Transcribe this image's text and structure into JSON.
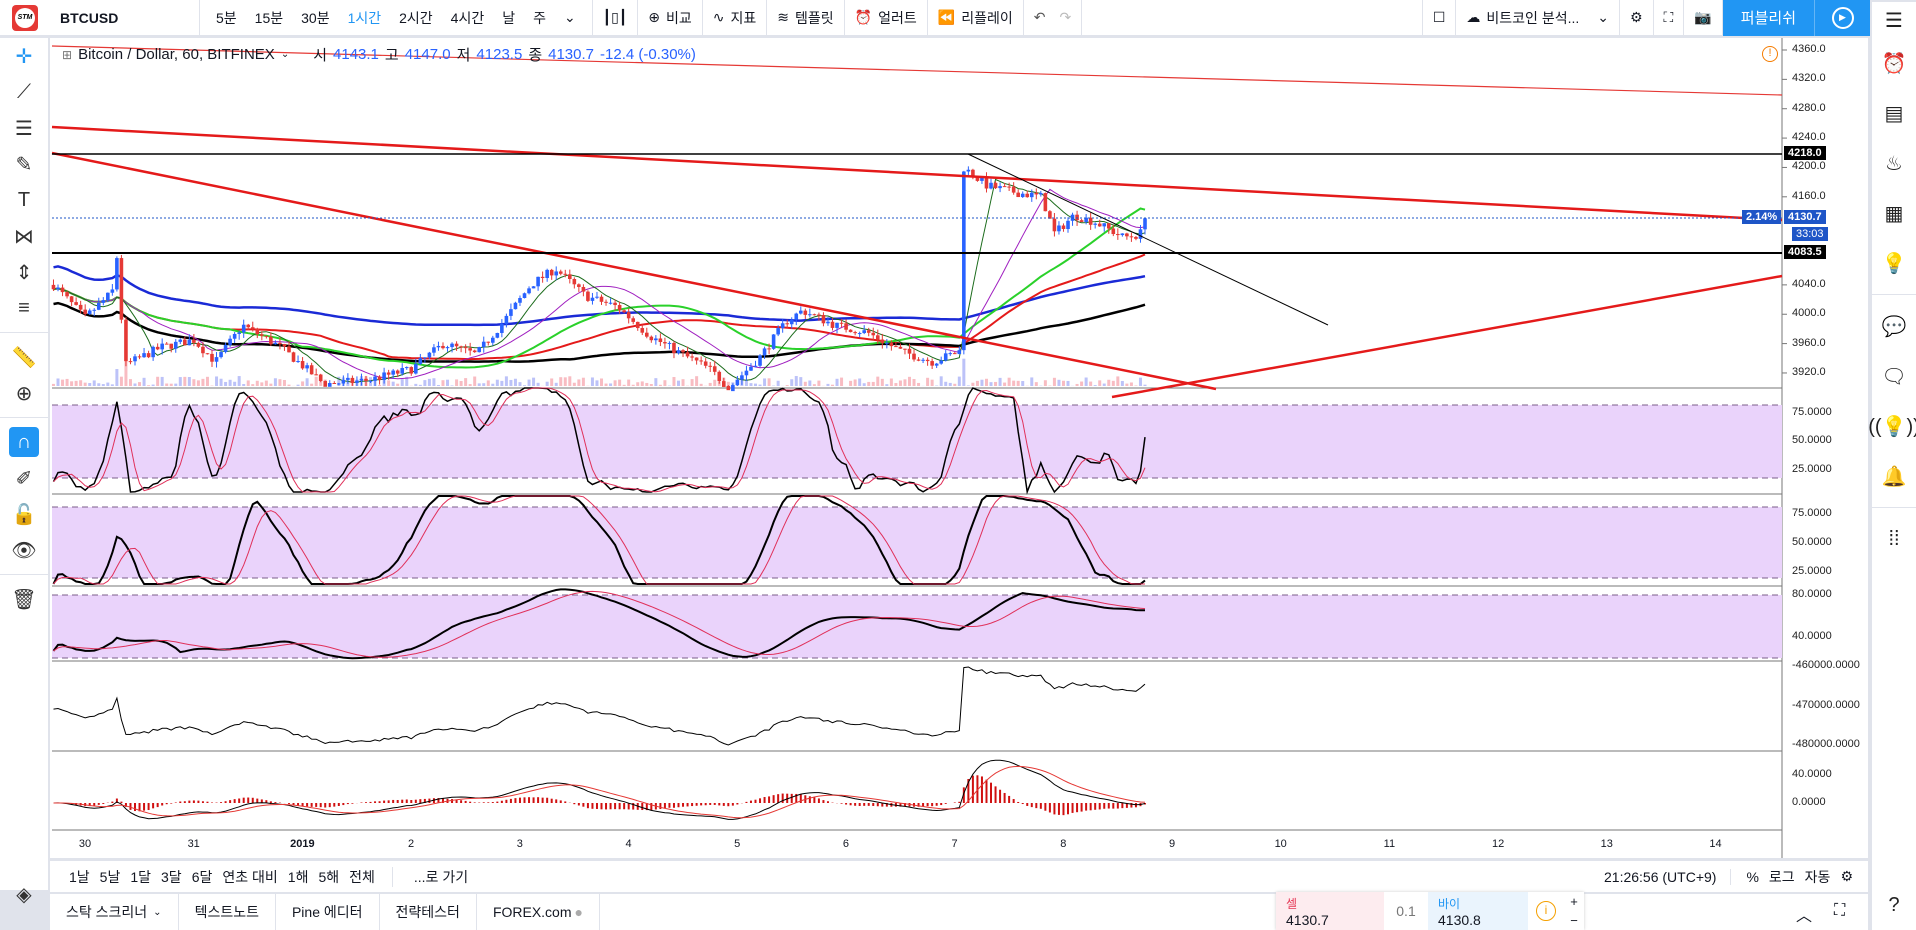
{
  "toolbar": {
    "symbol": "BTCUSD",
    "timeframes": [
      "5분",
      "15분",
      "30분",
      "1시간",
      "2시간",
      "4시간",
      "날",
      "주"
    ],
    "active_timeframe": "1시간",
    "compare": "비교",
    "indicators": "지표",
    "templates": "템플릿",
    "alert": "얼러트",
    "replay": "리플레이",
    "layout_name": "비트코인 분석...",
    "publish": "퍼블리쉬"
  },
  "legend": {
    "title": "Bitcoin / Dollar, 60, BITFINEX",
    "open_label": "시",
    "open": "4143.1",
    "high_label": "고",
    "high": "4147.0",
    "low_label": "저",
    "low": "4123.5",
    "close_label": "종",
    "close": "4130.7",
    "change": "-12.4 (-0.30%)"
  },
  "price_axis": {
    "main": [
      "4360.0",
      "4320.0",
      "4280.0",
      "4240.0",
      "4200.0",
      "4160.0",
      "4040.0",
      "4000.0",
      "3960.0",
      "3920.0"
    ],
    "main_values": [
      4360,
      4320,
      4280,
      4240,
      4200,
      4160,
      4040,
      4000,
      3960,
      3920
    ],
    "tag_upper": "4218.0",
    "tag_lower": "4083.5",
    "last_price": "4130.7",
    "countdown": "33:03",
    "pct": "2.14%",
    "pane2": [
      "75.0000",
      "50.0000",
      "25.0000"
    ],
    "pane3": [
      "75.0000",
      "50.0000",
      "25.0000"
    ],
    "pane4": [
      "80.0000",
      "40.0000"
    ],
    "pane5": [
      "-460000.0000",
      "-470000.0000",
      "-480000.0000"
    ],
    "pane6": [
      "40.0000",
      "0.0000"
    ]
  },
  "time_axis": [
    "30",
    "31",
    "2019",
    "2",
    "3",
    "4",
    "5",
    "6",
    "7",
    "8",
    "9",
    "10",
    "11",
    "12",
    "13",
    "14"
  ],
  "price_path": [
    [
      -0.29,
      4040
    ],
    [
      0,
      3995
    ],
    [
      0.25,
      4030
    ],
    [
      0.3,
      4085
    ],
    [
      0.36,
      3930
    ],
    [
      0.7,
      3955
    ],
    [
      1,
      3965
    ],
    [
      1.2,
      3935
    ],
    [
      1.45,
      3985
    ],
    [
      1.8,
      3955
    ],
    [
      2.2,
      3905
    ],
    [
      2.6,
      3910
    ],
    [
      3,
      3925
    ],
    [
      3.3,
      3960
    ],
    [
      3.6,
      3945
    ],
    [
      3.85,
      3990
    ],
    [
      4.1,
      4040
    ],
    [
      4.33,
      4062
    ],
    [
      4.6,
      4025
    ],
    [
      4.9,
      4010
    ],
    [
      5.2,
      3970
    ],
    [
      5.5,
      3945
    ],
    [
      5.75,
      3925
    ],
    [
      5.92,
      3900
    ],
    [
      6.2,
      3940
    ],
    [
      6.45,
      3990
    ],
    [
      6.6,
      4005
    ],
    [
      6.9,
      3985
    ],
    [
      7.2,
      3975
    ],
    [
      7.5,
      3950
    ],
    [
      7.8,
      3935
    ],
    [
      8.05,
      3950
    ],
    [
      8.08,
      4200
    ],
    [
      8.3,
      4175
    ],
    [
      8.6,
      4165
    ],
    [
      8.8,
      4160
    ],
    [
      8.92,
      4110
    ],
    [
      9.1,
      4135
    ],
    [
      9.3,
      4125
    ],
    [
      9.55,
      4105
    ],
    [
      9.7,
      4108
    ],
    [
      9.79,
      4132
    ]
  ],
  "range_bar": {
    "ranges": [
      "1날",
      "5날",
      "1달",
      "3달",
      "6달",
      "연초 대비",
      "1해",
      "5해",
      "전체"
    ],
    "goto": "...로 가기",
    "clock": "21:26:56 (UTC+9)",
    "pct": "%",
    "log": "로그",
    "auto": "자동"
  },
  "bottom": {
    "tabs": [
      "스탁 스크리너",
      "텍스트노트",
      "Pine 에디터",
      "전략테스터",
      "FOREX.com"
    ],
    "sell_label": "셀",
    "sell_price": "4130.7",
    "spread": "0.1",
    "buy_label": "바이",
    "buy_price": "4130.8"
  },
  "colors": {
    "accent": "#2196f3",
    "up": "#2962ff",
    "down": "#e53935",
    "band": "#ead3fb"
  }
}
